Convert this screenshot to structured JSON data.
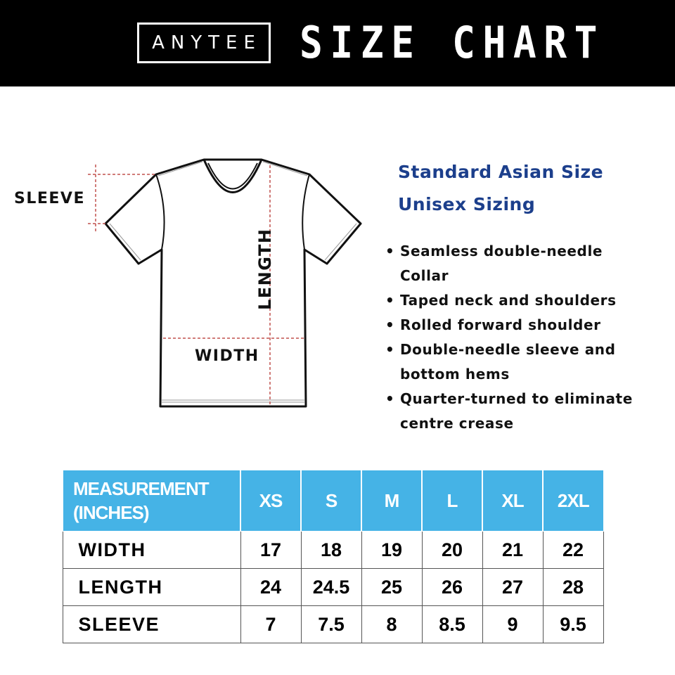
{
  "header": {
    "brand": "ANYTEE",
    "title": "SIZE CHART"
  },
  "diagram": {
    "sleeve_label": "SLEEVE",
    "length_label": "LENGTH",
    "width_label": "WIDTH"
  },
  "info": {
    "line1": "Standard Asian Size",
    "line2": "Unisex Sizing"
  },
  "features": [
    {
      "text": "Seamless double-needle",
      "cont": "Collar"
    },
    {
      "text": "Taped neck and shoulders",
      "cont": ""
    },
    {
      "text": "Rolled forward shoulder",
      "cont": ""
    },
    {
      "text": "Double-needle sleeve and",
      "cont": "bottom hems"
    },
    {
      "text": "Quarter-turned to eliminate",
      "cont": "centre crease"
    }
  ],
  "colors": {
    "header_bg": "#000000",
    "table_header": "#45b3e6",
    "info_text": "#1c3f8c",
    "dash": "#c0504d"
  },
  "table": {
    "header_line1": "MEASUREMENT",
    "header_line2": "(INCHES)",
    "sizes": [
      "XS",
      "S",
      "M",
      "L",
      "XL",
      "2XL"
    ],
    "rows": [
      {
        "label": "WIDTH",
        "values": [
          "17",
          "18",
          "19",
          "20",
          "21",
          "22"
        ]
      },
      {
        "label": "LENGTH",
        "values": [
          "24",
          "24.5",
          "25",
          "26",
          "27",
          "28"
        ]
      },
      {
        "label": "SLEEVE",
        "values": [
          "7",
          "7.5",
          "8",
          "8.5",
          "9",
          "9.5"
        ]
      }
    ]
  }
}
